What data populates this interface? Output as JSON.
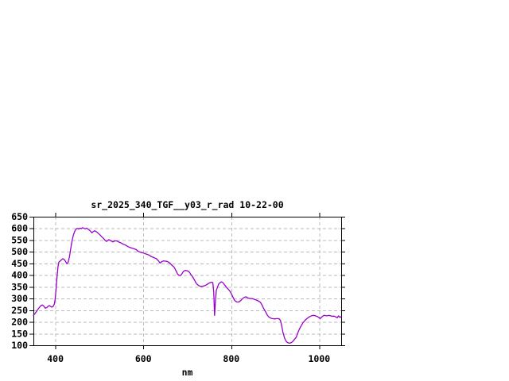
{
  "chart_data": {
    "type": "line",
    "title": "sr_2025_340_TGF__y03_r_rad 10-22-00",
    "xlabel": "nm",
    "ylabel": "",
    "xlim": [
      350,
      1050
    ],
    "ylim": [
      100,
      650
    ],
    "x_ticks": [
      400,
      600,
      800,
      1000
    ],
    "y_ticks": [
      100,
      150,
      200,
      250,
      300,
      350,
      400,
      450,
      500,
      550,
      600,
      650
    ],
    "grid": true,
    "legend_position": "none",
    "series": [
      {
        "color": "#9900cc",
        "points": [
          [
            350,
            228
          ],
          [
            353,
            234
          ],
          [
            356,
            242
          ],
          [
            359,
            250
          ],
          [
            362,
            258
          ],
          [
            365,
            265
          ],
          [
            368,
            271
          ],
          [
            371,
            272
          ],
          [
            374,
            266
          ],
          [
            377,
            259
          ],
          [
            380,
            261
          ],
          [
            383,
            266
          ],
          [
            386,
            270
          ],
          [
            389,
            266
          ],
          [
            392,
            263
          ],
          [
            395,
            267
          ],
          [
            398,
            278
          ],
          [
            400,
            305
          ],
          [
            402,
            350
          ],
          [
            404,
            400
          ],
          [
            406,
            438
          ],
          [
            408,
            456
          ],
          [
            411,
            461
          ],
          [
            414,
            466
          ],
          [
            417,
            470
          ],
          [
            420,
            467
          ],
          [
            423,
            459
          ],
          [
            426,
            449
          ],
          [
            429,
            455
          ],
          [
            432,
            478
          ],
          [
            435,
            515
          ],
          [
            438,
            548
          ],
          [
            441,
            572
          ],
          [
            444,
            588
          ],
          [
            447,
            597
          ],
          [
            450,
            600
          ],
          [
            453,
            597
          ],
          [
            456,
            601
          ],
          [
            459,
            599
          ],
          [
            462,
            603
          ],
          [
            465,
            600
          ],
          [
            468,
            598
          ],
          [
            471,
            601
          ],
          [
            474,
            597
          ],
          [
            477,
            593
          ],
          [
            480,
            588
          ],
          [
            483,
            581
          ],
          [
            486,
            586
          ],
          [
            489,
            590
          ],
          [
            492,
            587
          ],
          [
            495,
            583
          ],
          [
            498,
            578
          ],
          [
            501,
            573
          ],
          [
            504,
            567
          ],
          [
            507,
            561
          ],
          [
            510,
            556
          ],
          [
            513,
            549
          ],
          [
            516,
            544
          ],
          [
            519,
            548
          ],
          [
            522,
            552
          ],
          [
            525,
            548
          ],
          [
            528,
            545
          ],
          [
            531,
            542
          ],
          [
            535,
            547
          ],
          [
            540,
            546
          ],
          [
            545,
            541
          ],
          [
            550,
            537
          ],
          [
            555,
            532
          ],
          [
            560,
            528
          ],
          [
            565,
            522
          ],
          [
            570,
            518
          ],
          [
            575,
            515
          ],
          [
            580,
            512
          ],
          [
            584,
            509
          ],
          [
            588,
            502
          ],
          [
            592,
            499
          ],
          [
            596,
            497
          ],
          [
            600,
            495
          ],
          [
            605,
            491
          ],
          [
            610,
            488
          ],
          [
            615,
            484
          ],
          [
            618,
            479
          ],
          [
            622,
            477
          ],
          [
            626,
            473
          ],
          [
            630,
            470
          ],
          [
            634,
            462
          ],
          [
            638,
            452
          ],
          [
            642,
            458
          ],
          [
            646,
            461
          ],
          [
            650,
            460
          ],
          [
            654,
            459
          ],
          [
            658,
            455
          ],
          [
            662,
            448
          ],
          [
            666,
            441
          ],
          [
            670,
            434
          ],
          [
            674,
            420
          ],
          [
            678,
            405
          ],
          [
            681,
            399
          ],
          [
            684,
            398
          ],
          [
            687,
            403
          ],
          [
            690,
            413
          ],
          [
            693,
            418
          ],
          [
            696,
            420
          ],
          [
            699,
            419
          ],
          [
            702,
            417
          ],
          [
            705,
            412
          ],
          [
            708,
            403
          ],
          [
            711,
            396
          ],
          [
            714,
            387
          ],
          [
            717,
            377
          ],
          [
            720,
            366
          ],
          [
            723,
            360
          ],
          [
            726,
            355
          ],
          [
            729,
            353
          ],
          [
            732,
            352
          ],
          [
            735,
            353
          ],
          [
            738,
            354
          ],
          [
            741,
            356
          ],
          [
            744,
            359
          ],
          [
            748,
            364
          ],
          [
            752,
            368
          ],
          [
            755,
            370
          ],
          [
            758,
            368
          ],
          [
            760,
            330
          ],
          [
            762,
            228
          ],
          [
            764,
            290
          ],
          [
            766,
            335
          ],
          [
            768,
            345
          ],
          [
            771,
            361
          ],
          [
            774,
            367
          ],
          [
            777,
            371
          ],
          [
            780,
            370
          ],
          [
            783,
            363
          ],
          [
            786,
            356
          ],
          [
            789,
            348
          ],
          [
            792,
            342
          ],
          [
            795,
            336
          ],
          [
            798,
            328
          ],
          [
            801,
            318
          ],
          [
            804,
            305
          ],
          [
            807,
            294
          ],
          [
            810,
            288
          ],
          [
            813,
            285
          ],
          [
            816,
            285
          ],
          [
            819,
            287
          ],
          [
            822,
            292
          ],
          [
            825,
            298
          ],
          [
            828,
            303
          ],
          [
            831,
            306
          ],
          [
            834,
            307
          ],
          [
            837,
            304
          ],
          [
            840,
            301
          ],
          [
            843,
            300
          ],
          [
            846,
            300
          ],
          [
            849,
            299
          ],
          [
            852,
            297
          ],
          [
            855,
            295
          ],
          [
            858,
            293
          ],
          [
            861,
            290
          ],
          [
            864,
            287
          ],
          [
            867,
            282
          ],
          [
            870,
            272
          ],
          [
            873,
            260
          ],
          [
            876,
            250
          ],
          [
            879,
            240
          ],
          [
            882,
            229
          ],
          [
            885,
            222
          ],
          [
            888,
            218
          ],
          [
            891,
            215
          ],
          [
            894,
            214
          ],
          [
            897,
            213
          ],
          [
            900,
            213
          ],
          [
            903,
            214
          ],
          [
            906,
            214
          ],
          [
            909,
            213
          ],
          [
            912,
            206
          ],
          [
            915,
            180
          ],
          [
            918,
            152
          ],
          [
            921,
            132
          ],
          [
            924,
            120
          ],
          [
            927,
            113
          ],
          [
            930,
            110
          ],
          [
            933,
            109
          ],
          [
            936,
            111
          ],
          [
            939,
            115
          ],
          [
            942,
            121
          ],
          [
            945,
            128
          ],
          [
            948,
            135
          ],
          [
            951,
            152
          ],
          [
            954,
            165
          ],
          [
            957,
            177
          ],
          [
            960,
            186
          ],
          [
            963,
            196
          ],
          [
            966,
            203
          ],
          [
            969,
            209
          ],
          [
            972,
            214
          ],
          [
            975,
            218
          ],
          [
            978,
            222
          ],
          [
            981,
            225
          ],
          [
            984,
            227
          ],
          [
            987,
            228
          ],
          [
            990,
            227
          ],
          [
            993,
            225
          ],
          [
            996,
            223
          ],
          [
            999,
            219
          ],
          [
            1002,
            214
          ],
          [
            1005,
            219
          ],
          [
            1008,
            225
          ],
          [
            1011,
            228
          ],
          [
            1014,
            227
          ],
          [
            1017,
            226
          ],
          [
            1020,
            227
          ],
          [
            1023,
            228
          ],
          [
            1026,
            226
          ],
          [
            1029,
            224
          ],
          [
            1032,
            225
          ],
          [
            1035,
            224
          ],
          [
            1038,
            221
          ],
          [
            1041,
            217
          ],
          [
            1044,
            226
          ],
          [
            1047,
            219
          ],
          [
            1050,
            223
          ]
        ]
      }
    ]
  },
  "colors": {
    "background": "#ffffff",
    "line": "#9900cc",
    "grid": "#bbbbbb",
    "border": "#000000",
    "text": "#000000"
  }
}
